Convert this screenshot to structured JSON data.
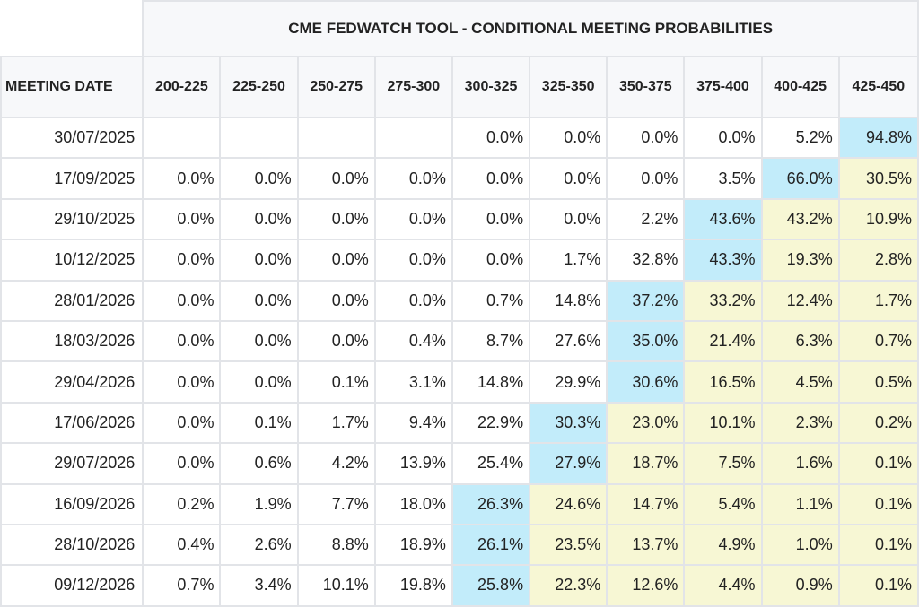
{
  "chart_data": {
    "type": "table",
    "title": "CME FEDWATCH TOOL - CONDITIONAL MEETING PROBABILITIES",
    "row_header_label": "MEETING DATE",
    "columns": [
      "200-225",
      "225-250",
      "250-275",
      "275-300",
      "300-325",
      "325-350",
      "350-375",
      "375-400",
      "400-425",
      "425-450"
    ],
    "rows": [
      {
        "date": "30/07/2025",
        "values": [
          "",
          "",
          "",
          "",
          "0.0%",
          "0.0%",
          "0.0%",
          "0.0%",
          "5.2%",
          "94.8%"
        ],
        "max_index": 9
      },
      {
        "date": "17/09/2025",
        "values": [
          "0.0%",
          "0.0%",
          "0.0%",
          "0.0%",
          "0.0%",
          "0.0%",
          "0.0%",
          "3.5%",
          "66.0%",
          "30.5%"
        ],
        "max_index": 8
      },
      {
        "date": "29/10/2025",
        "values": [
          "0.0%",
          "0.0%",
          "0.0%",
          "0.0%",
          "0.0%",
          "0.0%",
          "2.2%",
          "43.6%",
          "43.2%",
          "10.9%"
        ],
        "max_index": 7
      },
      {
        "date": "10/12/2025",
        "values": [
          "0.0%",
          "0.0%",
          "0.0%",
          "0.0%",
          "0.0%",
          "1.7%",
          "32.8%",
          "43.3%",
          "19.3%",
          "2.8%"
        ],
        "max_index": 7
      },
      {
        "date": "28/01/2026",
        "values": [
          "0.0%",
          "0.0%",
          "0.0%",
          "0.0%",
          "0.7%",
          "14.8%",
          "37.2%",
          "33.2%",
          "12.4%",
          "1.7%"
        ],
        "max_index": 6
      },
      {
        "date": "18/03/2026",
        "values": [
          "0.0%",
          "0.0%",
          "0.0%",
          "0.4%",
          "8.7%",
          "27.6%",
          "35.0%",
          "21.4%",
          "6.3%",
          "0.7%"
        ],
        "max_index": 6
      },
      {
        "date": "29/04/2026",
        "values": [
          "0.0%",
          "0.0%",
          "0.1%",
          "3.1%",
          "14.8%",
          "29.9%",
          "30.6%",
          "16.5%",
          "4.5%",
          "0.5%"
        ],
        "max_index": 6
      },
      {
        "date": "17/06/2026",
        "values": [
          "0.0%",
          "0.1%",
          "1.7%",
          "9.4%",
          "22.9%",
          "30.3%",
          "23.0%",
          "10.1%",
          "2.3%",
          "0.2%"
        ],
        "max_index": 5
      },
      {
        "date": "29/07/2026",
        "values": [
          "0.0%",
          "0.6%",
          "4.2%",
          "13.9%",
          "25.4%",
          "27.9%",
          "18.7%",
          "7.5%",
          "1.6%",
          "0.1%"
        ],
        "max_index": 5
      },
      {
        "date": "16/09/2026",
        "values": [
          "0.2%",
          "1.9%",
          "7.7%",
          "18.0%",
          "26.3%",
          "24.6%",
          "14.7%",
          "5.4%",
          "1.1%",
          "0.1%"
        ],
        "max_index": 4
      },
      {
        "date": "28/10/2026",
        "values": [
          "0.4%",
          "2.6%",
          "8.8%",
          "18.9%",
          "26.1%",
          "23.5%",
          "13.7%",
          "4.9%",
          "1.0%",
          "0.1%"
        ],
        "max_index": 4
      },
      {
        "date": "09/12/2026",
        "values": [
          "0.7%",
          "3.4%",
          "10.1%",
          "19.8%",
          "25.8%",
          "22.3%",
          "12.6%",
          "4.4%",
          "0.9%",
          "0.1%"
        ],
        "max_index": 4
      }
    ],
    "highlight_colors": {
      "max": "#c2ecfa",
      "above_max": "#f7f7d4",
      "grid": "#e2e4e8",
      "header_bg": "#f7f8fa"
    }
  }
}
